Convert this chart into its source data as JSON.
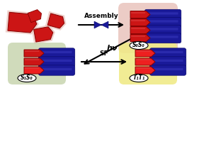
{
  "red": "#cc1515",
  "red_bright": "#ee2020",
  "blue": "#1a1a99",
  "blue_dark": "#0a0a6e",
  "light_pink_bg": "#e8c0b8",
  "green_bg": "#c8d5b0",
  "yellow_bg": "#f0ea88",
  "arrow_color": "#111111",
  "assembly_label": "Assembly",
  "hv_label": "hν",
  "sf_label": "SF",
  "s0s0_label": "S₀S₀",
  "s1s0_label": "S₁S₀",
  "t1t1_label": "T₁T₁"
}
